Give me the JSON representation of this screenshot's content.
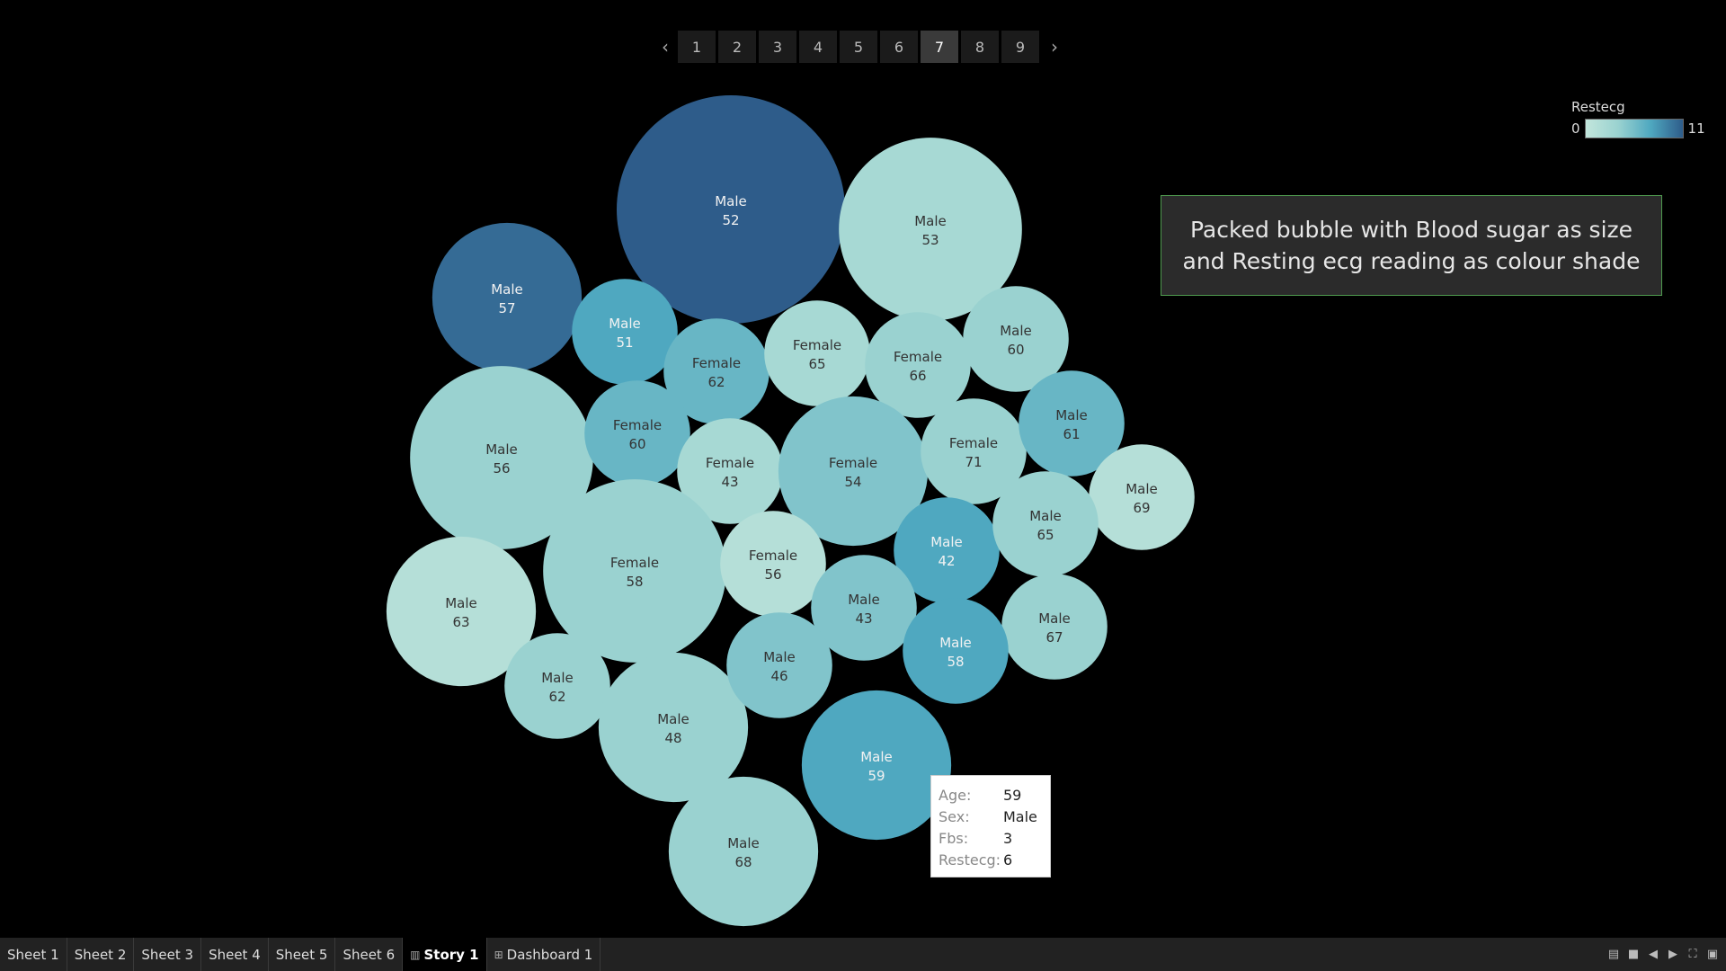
{
  "story": {
    "prev_icon": "chevron-left-icon",
    "next_icon": "chevron-right-icon",
    "pages": [
      "1",
      "2",
      "3",
      "4",
      "5",
      "6",
      "7",
      "8",
      "9"
    ],
    "active_page": "7"
  },
  "legend": {
    "title": "Restecg",
    "min_label": "0",
    "max_label": "11"
  },
  "caption": "Packed bubble with Blood sugar as size and Resting ecg reading as colour shade",
  "chart_data": {
    "type": "packed-bubble",
    "size_field": "Fbs",
    "color_field": "Restecg",
    "color_range": [
      0,
      11
    ],
    "bubbles": [
      {
        "sex": "Male",
        "age": "52",
        "fbs": 7,
        "restecg": 11
      },
      {
        "sex": "Male",
        "age": "53",
        "fbs": 4.5,
        "restecg": 2
      },
      {
        "sex": "Male",
        "age": "57",
        "fbs": 3,
        "restecg": 10
      },
      {
        "sex": "Male",
        "age": "51",
        "fbs": 1.5,
        "restecg": 6
      },
      {
        "sex": "Female",
        "age": "62",
        "fbs": 1.5,
        "restecg": 5
      },
      {
        "sex": "Female",
        "age": "65",
        "fbs": 1.5,
        "restecg": 2
      },
      {
        "sex": "Female",
        "age": "66",
        "fbs": 1.5,
        "restecg": 3
      },
      {
        "sex": "Male",
        "age": "60",
        "fbs": 1.5,
        "restecg": 3
      },
      {
        "sex": "Male",
        "age": "56",
        "fbs": 4.5,
        "restecg": 3
      },
      {
        "sex": "Female",
        "age": "60",
        "fbs": 1.5,
        "restecg": 5
      },
      {
        "sex": "Female",
        "age": "43",
        "fbs": 1.5,
        "restecg": 2
      },
      {
        "sex": "Female",
        "age": "54",
        "fbs": 3,
        "restecg": 4
      },
      {
        "sex": "Female",
        "age": "71",
        "fbs": 1.5,
        "restecg": 3
      },
      {
        "sex": "Male",
        "age": "61",
        "fbs": 1.5,
        "restecg": 5
      },
      {
        "sex": "Male",
        "age": "69",
        "fbs": 1.5,
        "restecg": 1
      },
      {
        "sex": "Female",
        "age": "58",
        "fbs": 4.5,
        "restecg": 3
      },
      {
        "sex": "Female",
        "age": "56",
        "fbs": 1.5,
        "restecg": 1
      },
      {
        "sex": "Male",
        "age": "42",
        "fbs": 1.5,
        "restecg": 6
      },
      {
        "sex": "Male",
        "age": "65",
        "fbs": 1.5,
        "restecg": 3
      },
      {
        "sex": "Male",
        "age": "63",
        "fbs": 3,
        "restecg": 1
      },
      {
        "sex": "Male",
        "age": "43",
        "fbs": 1.5,
        "restecg": 4
      },
      {
        "sex": "Male",
        "age": "67",
        "fbs": 1.5,
        "restecg": 3
      },
      {
        "sex": "Male",
        "age": "62",
        "fbs": 1.5,
        "restecg": 3
      },
      {
        "sex": "Male",
        "age": "48",
        "fbs": 3,
        "restecg": 3
      },
      {
        "sex": "Male",
        "age": "46",
        "fbs": 1.5,
        "restecg": 4
      },
      {
        "sex": "Male",
        "age": "58",
        "fbs": 1.5,
        "restecg": 6
      },
      {
        "sex": "Male",
        "age": "59",
        "fbs": 3,
        "restecg": 6
      },
      {
        "sex": "Male",
        "age": "68",
        "fbs": 3,
        "restecg": 3
      }
    ]
  },
  "tooltip": {
    "rows": [
      {
        "key": "Age:",
        "value": "59"
      },
      {
        "key": "Sex:",
        "value": "Male"
      },
      {
        "key": "Fbs:",
        "value": "3"
      },
      {
        "key": "Restecg:",
        "value": "6"
      }
    ]
  },
  "tabs": [
    {
      "label": "Sheet 1",
      "icon": ""
    },
    {
      "label": "Sheet 2",
      "icon": ""
    },
    {
      "label": "Sheet 3",
      "icon": ""
    },
    {
      "label": "Sheet 4",
      "icon": ""
    },
    {
      "label": "Sheet 5",
      "icon": ""
    },
    {
      "label": "Sheet 6",
      "icon": ""
    },
    {
      "label": "Story 1",
      "icon": "story-icon"
    },
    {
      "label": "Dashboard 1",
      "icon": "dashboard-icon"
    }
  ],
  "active_tab": "Story 1",
  "controls": [
    "show-sheet-sorter-icon",
    "show-filmstrip-icon",
    "previous-sheet-icon",
    "next-sheet-icon",
    "fullscreen-icon",
    "presentation-mode-icon"
  ]
}
